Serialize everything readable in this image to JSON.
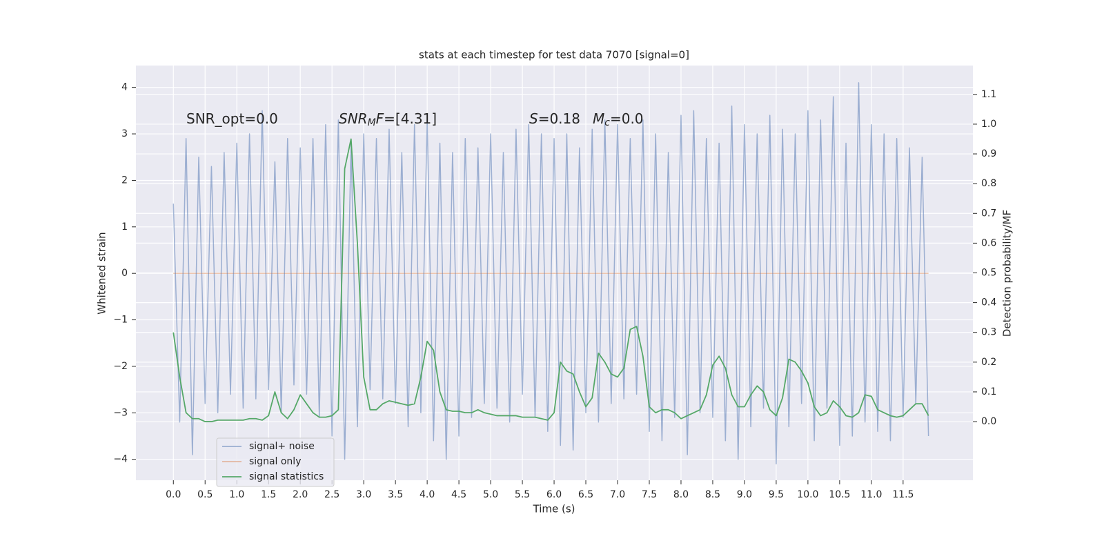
{
  "chart_data": {
    "type": "line",
    "title": "stats at each timestep for test data 7070 [signal=0]",
    "x_label": "Time (s)",
    "y_label": "Whitened strain",
    "y2_label": "Detection probability/MF",
    "annotations": [
      [
        {
          "text": "SNR_opt=0.0",
          "style": "normal"
        }
      ],
      [
        {
          "text": "SNR",
          "style": "italic"
        },
        {
          "text": "M",
          "style": "italic-sub"
        },
        {
          "text": "F",
          "style": "italic"
        },
        {
          "text": "=[4.31]",
          "style": "normal"
        }
      ],
      [
        {
          "text": "S",
          "style": "italic"
        },
        {
          "text": "=0.18",
          "style": "normal"
        }
      ],
      [
        {
          "text": "M",
          "style": "italic"
        },
        {
          "text": "c",
          "style": "italic-sub"
        },
        {
          "text": "=0.0",
          "style": "normal"
        }
      ]
    ],
    "x": [
      0,
      0.1,
      0.2,
      0.3,
      0.4,
      0.5,
      0.6,
      0.7,
      0.8,
      0.9,
      1,
      1.1,
      1.2,
      1.3,
      1.4,
      1.5,
      1.6,
      1.7,
      1.8,
      1.9,
      2,
      2.1,
      2.2,
      2.3,
      2.4,
      2.5,
      2.6,
      2.7,
      2.8,
      2.9,
      3,
      3.1,
      3.2,
      3.3,
      3.4,
      3.5,
      3.6,
      3.7,
      3.8,
      3.9,
      4,
      4.1,
      4.2,
      4.3,
      4.4,
      4.5,
      4.6,
      4.7,
      4.8,
      4.9,
      5,
      5.1,
      5.2,
      5.3,
      5.4,
      5.5,
      5.6,
      5.7,
      5.8,
      5.9,
      6,
      6.1,
      6.2,
      6.3,
      6.4,
      6.5,
      6.6,
      6.7,
      6.8,
      6.9,
      7,
      7.1,
      7.2,
      7.3,
      7.4,
      7.5,
      7.6,
      7.7,
      7.8,
      7.9,
      8,
      8.1,
      8.2,
      8.3,
      8.4,
      8.5,
      8.6,
      8.7,
      8.8,
      8.9,
      9,
      9.1,
      9.2,
      9.3,
      9.4,
      9.5,
      9.6,
      9.7,
      9.8,
      9.9,
      10,
      10.1,
      10.2,
      10.3,
      10.4,
      10.5,
      10.6,
      10.7,
      10.8,
      10.9,
      11,
      11.1,
      11.2,
      11.3,
      11.4,
      11.5,
      11.6,
      11.7,
      11.8,
      11.9
    ],
    "series": [
      {
        "name": "signal+ noise",
        "color": "#4c72b0",
        "opacity": 0.5,
        "axis": "y",
        "values": [
          1.5,
          -3.2,
          2.9,
          -3.9,
          2.5,
          -2.8,
          2.3,
          -3.0,
          2.6,
          -2.6,
          2.8,
          -2.9,
          3.0,
          -2.7,
          3.5,
          -2.5,
          2.4,
          -3.0,
          2.9,
          -2.4,
          2.7,
          -2.6,
          2.9,
          -3.1,
          3.2,
          -3.5,
          3.3,
          -4.0,
          2.8,
          -3.3,
          3.0,
          -2.5,
          2.9,
          -2.7,
          3.1,
          -2.8,
          2.6,
          -3.3,
          3.2,
          -3.0,
          3.3,
          -3.6,
          2.8,
          -4.0,
          2.6,
          -3.5,
          2.9,
          -3.1,
          2.7,
          -2.8,
          3.0,
          -2.9,
          2.6,
          -3.2,
          3.1,
          -2.6,
          3.2,
          -3.1,
          3.0,
          -3.4,
          2.9,
          -3.7,
          3.0,
          -3.8,
          2.7,
          -3.0,
          3.1,
          -3.2,
          3.3,
          -2.8,
          3.2,
          -2.7,
          2.9,
          -2.6,
          3.3,
          -3.4,
          3.0,
          -3.6,
          2.6,
          -3.1,
          3.4,
          -3.9,
          3.5,
          -3.0,
          2.9,
          -3.1,
          2.8,
          -3.6,
          3.6,
          -4.0,
          3.2,
          -3.3,
          3.0,
          -2.9,
          3.4,
          -4.1,
          3.1,
          -3.3,
          3.0,
          -2.8,
          3.5,
          -3.6,
          3.3,
          -2.9,
          3.8,
          -3.7,
          2.8,
          -3.5,
          4.1,
          -3.2,
          3.2,
          -3.4,
          3.0,
          -3.6,
          2.9,
          -3.1,
          2.7,
          -2.8,
          2.5,
          -3.5
        ]
      },
      {
        "name": "signal only",
        "color": "#dd8452",
        "opacity": 0.5,
        "axis": "y",
        "values": [
          0,
          0,
          0,
          0,
          0,
          0,
          0,
          0,
          0,
          0,
          0,
          0,
          0,
          0,
          0,
          0,
          0,
          0,
          0,
          0,
          0,
          0,
          0,
          0,
          0,
          0,
          0,
          0,
          0,
          0,
          0,
          0,
          0,
          0,
          0,
          0,
          0,
          0,
          0,
          0,
          0,
          0,
          0,
          0,
          0,
          0,
          0,
          0,
          0,
          0,
          0,
          0,
          0,
          0,
          0,
          0,
          0,
          0,
          0,
          0,
          0,
          0,
          0,
          0,
          0,
          0,
          0,
          0,
          0,
          0,
          0,
          0,
          0,
          0,
          0,
          0,
          0,
          0,
          0,
          0,
          0,
          0,
          0,
          0,
          0,
          0,
          0,
          0,
          0,
          0,
          0,
          0,
          0,
          0,
          0,
          0,
          0,
          0,
          0,
          0,
          0,
          0,
          0,
          0,
          0,
          0,
          0,
          0,
          0,
          0,
          0,
          0,
          0,
          0,
          0,
          0,
          0,
          0,
          0,
          0
        ]
      },
      {
        "name": "signal statistics",
        "color": "#55a868",
        "opacity": 1,
        "axis": "y2",
        "values": [
          0.3,
          0.15,
          0.03,
          0.01,
          0.01,
          0.0,
          0.0,
          0.005,
          0.005,
          0.005,
          0.005,
          0.005,
          0.01,
          0.01,
          0.005,
          0.02,
          0.1,
          0.03,
          0.01,
          0.04,
          0.09,
          0.06,
          0.03,
          0.015,
          0.015,
          0.02,
          0.04,
          0.85,
          0.95,
          0.6,
          0.15,
          0.04,
          0.04,
          0.06,
          0.07,
          0.065,
          0.06,
          0.055,
          0.06,
          0.15,
          0.27,
          0.24,
          0.1,
          0.04,
          0.035,
          0.035,
          0.03,
          0.03,
          0.04,
          0.03,
          0.025,
          0.02,
          0.02,
          0.02,
          0.02,
          0.015,
          0.015,
          0.015,
          0.01,
          0.005,
          0.03,
          0.2,
          0.17,
          0.16,
          0.1,
          0.05,
          0.08,
          0.23,
          0.2,
          0.16,
          0.15,
          0.18,
          0.31,
          0.32,
          0.22,
          0.05,
          0.03,
          0.04,
          0.04,
          0.03,
          0.01,
          0.02,
          0.03,
          0.04,
          0.09,
          0.19,
          0.22,
          0.18,
          0.09,
          0.05,
          0.05,
          0.09,
          0.12,
          0.1,
          0.04,
          0.02,
          0.08,
          0.21,
          0.2,
          0.17,
          0.13,
          0.05,
          0.02,
          0.03,
          0.07,
          0.05,
          0.02,
          0.015,
          0.03,
          0.09,
          0.085,
          0.04,
          0.03,
          0.02,
          0.015,
          0.02,
          0.04,
          0.06,
          0.06,
          0.02
        ]
      }
    ],
    "xlim": [
      -0.59,
      12.6
    ],
    "ylim": [
      -4.45,
      4.47
    ],
    "y2lim": [
      -0.197,
      1.197
    ],
    "xticks": [
      {
        "value": 0,
        "label": "0.0"
      },
      0.5,
      {
        "value": 1,
        "label": "1.0"
      },
      1.5,
      {
        "value": 2,
        "label": "2.0"
      },
      2.5,
      {
        "value": 3,
        "label": "3.0"
      },
      3.5,
      {
        "value": 4,
        "label": "4.0"
      },
      4.5,
      {
        "value": 5,
        "label": "5.0"
      },
      5.5,
      {
        "value": 6,
        "label": "6.0"
      },
      6.5,
      {
        "value": 7,
        "label": "7.0"
      },
      7.5,
      {
        "value": 8,
        "label": "8.0"
      },
      8.5,
      {
        "value": 9,
        "label": "9.0"
      },
      9.5,
      {
        "value": 10,
        "label": "10.0"
      },
      10.5,
      {
        "value": 11,
        "label": "11.0"
      },
      11.5
    ],
    "yticks": [
      {
        "value": -4,
        "label": "−4"
      },
      {
        "value": -3,
        "label": "−3"
      },
      {
        "value": -2,
        "label": "−2"
      },
      {
        "value": -1,
        "label": "−1"
      },
      0,
      1,
      2,
      3,
      4
    ],
    "y2ticks": [
      {
        "value": 0,
        "label": "0.0"
      },
      0.1,
      0.2,
      0.3,
      0.4,
      0.5,
      0.6,
      0.7,
      0.8,
      0.9,
      {
        "value": 1,
        "label": "1.0"
      },
      1.1
    ],
    "grid": true,
    "background": "#eaeaf2"
  }
}
